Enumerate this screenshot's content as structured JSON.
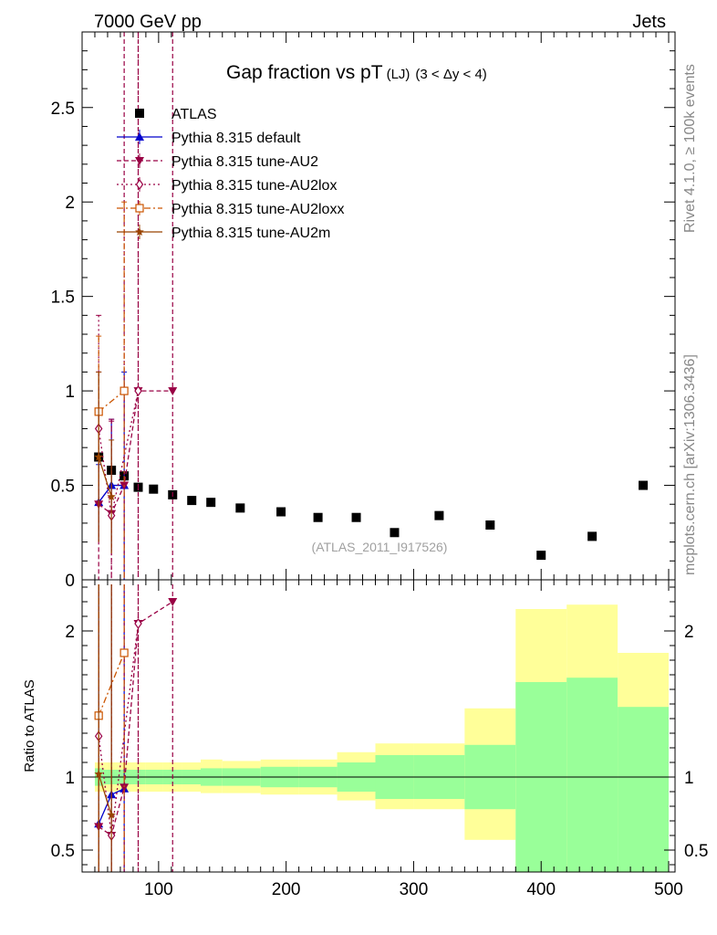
{
  "header": {
    "left": "7000 GeV pp",
    "right": "Jets"
  },
  "side_labels": {
    "rivet": "Rivet 4.1.0, ≥ 100k events",
    "source": "mcplots.cern.ch [arXiv:1306.3436]"
  },
  "chart_data": {
    "type": "scatter",
    "title": "Gap fraction vs pT",
    "title_sub": "(LJ)",
    "title_range": "(3 < Δy < 4)",
    "watermark": "(ATLAS_2011_I917526)",
    "xlabel": "",
    "ylabel_ratio": "Ratio to ATLAS",
    "xlim": [
      40,
      505
    ],
    "ylim_main": [
      0,
      2.9
    ],
    "ylim_ratio": [
      0.35,
      2.35
    ],
    "x_ticks": [
      100,
      200,
      300,
      400,
      500
    ],
    "y_ticks_main": [
      0.5,
      1,
      1.5,
      2,
      2.5
    ],
    "y_ticks_main_labels": [
      "0.5",
      "1",
      "1.5",
      "2",
      "2.5"
    ],
    "y_ticks_ratio": [
      0.5,
      1,
      2
    ],
    "y_ticks_ratio_labels": [
      "0.5",
      "1",
      "2"
    ],
    "series": [
      {
        "name": "ATLAS",
        "color": "#000000",
        "marker": "square",
        "x": [
          53,
          63,
          73,
          84,
          96,
          111,
          126,
          141,
          164,
          196,
          225,
          255,
          285,
          320,
          360,
          400,
          440,
          480
        ],
        "y": [
          0.65,
          0.58,
          0.55,
          0.49,
          0.48,
          0.45,
          0.42,
          0.41,
          0.38,
          0.36,
          0.33,
          0.33,
          0.25,
          0.34,
          0.29,
          0.13,
          0.23,
          0.5
        ]
      },
      {
        "name": "Pythia 8.315 default",
        "color": "#0000cc",
        "marker": "triangle-up",
        "dash": "",
        "x": [
          53,
          63,
          73
        ],
        "y": [
          0.41,
          0.5,
          0.5
        ],
        "err": [
          0.2,
          0.35,
          0.6
        ],
        "ratio": [
          0.68,
          0.88,
          0.92
        ]
      },
      {
        "name": "Pythia 8.315 tune-AU2",
        "color": "#990044",
        "marker": "triangle-down",
        "dash": "5,3",
        "x": [
          53,
          63,
          73,
          84,
          111
        ],
        "y": [
          0.4,
          0.35,
          0.5,
          1.0,
          1.0
        ],
        "err": [
          0.7,
          0.5,
          2.6,
          2.5,
          2.5
        ],
        "ratio": [
          0.66,
          0.6,
          0.93,
          2.05,
          2.2
        ]
      },
      {
        "name": "Pythia 8.315 tune-AU2lox",
        "color": "#990044",
        "marker": "diamond",
        "dash": "2,3",
        "x": [
          53,
          63,
          84
        ],
        "y": [
          0.8,
          0.34,
          1.0
        ],
        "err": [
          0.6,
          0.5,
          2.5
        ],
        "ratio": [
          1.28,
          0.6,
          2.05
        ]
      },
      {
        "name": "Pythia 8.315 tune-AU2loxx",
        "color": "#cc5500",
        "marker": "square-open",
        "dash": "7,3,2,3",
        "x": [
          53,
          73
        ],
        "y": [
          0.89,
          1.0
        ],
        "err": [
          0.4,
          1.0
        ],
        "ratio": [
          1.42,
          1.85
        ]
      },
      {
        "name": "Pythia 8.315 tune-AU2m",
        "color": "#994400",
        "marker": "star",
        "dash": "",
        "x": [
          53,
          63
        ],
        "y": [
          0.65,
          0.44
        ],
        "err": [
          0.45,
          0.3
        ],
        "ratio": [
          1.02,
          0.74
        ]
      }
    ],
    "ratio_bands": {
      "edges": [
        50,
        57,
        68,
        79,
        90,
        103,
        118,
        133,
        150,
        180,
        210,
        240,
        270,
        300,
        340,
        380,
        420,
        460,
        500
      ],
      "green_lo": [
        0.94,
        0.95,
        0.95,
        0.95,
        0.95,
        0.95,
        0.95,
        0.94,
        0.94,
        0.93,
        0.93,
        0.9,
        0.85,
        0.85,
        0.78,
        0.35,
        0.35,
        0.35
      ],
      "green_hi": [
        1.06,
        1.05,
        1.05,
        1.05,
        1.05,
        1.05,
        1.05,
        1.06,
        1.06,
        1.07,
        1.07,
        1.1,
        1.15,
        1.15,
        1.22,
        1.65,
        1.68,
        1.48
      ],
      "yellow_lo": [
        0.9,
        0.9,
        0.9,
        0.9,
        0.9,
        0.9,
        0.9,
        0.89,
        0.89,
        0.88,
        0.88,
        0.84,
        0.78,
        0.78,
        0.57,
        0.35,
        0.35,
        0.61
      ],
      "yellow_hi": [
        1.1,
        1.1,
        1.1,
        1.1,
        1.1,
        1.1,
        1.1,
        1.12,
        1.11,
        1.12,
        1.12,
        1.17,
        1.23,
        1.23,
        1.47,
        2.15,
        2.18,
        1.85
      ]
    }
  }
}
